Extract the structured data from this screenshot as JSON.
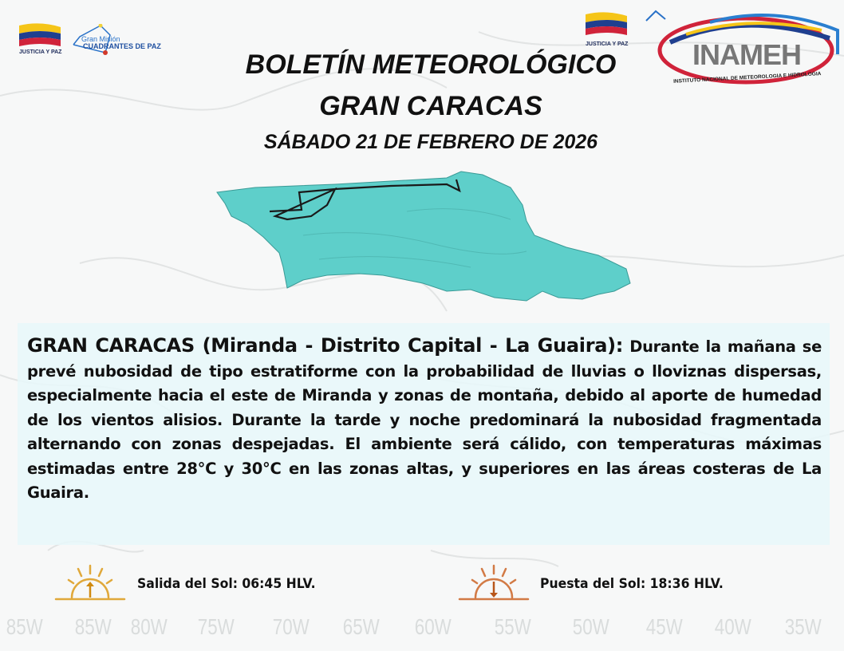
{
  "header": {
    "left_logos": {
      "flag_caption": "JUSTICIA Y PAZ",
      "mission_line1": "Gran Misión",
      "mission_line2": "CUADRANTES DE PAZ"
    },
    "right_logos": {
      "flag_caption": "JUSTICIA Y PAZ",
      "inameh_name": "INAMEH",
      "inameh_full": "INSTITUTO NACIONAL DE METEOROLOGIA E HIDROLOGIA"
    },
    "title_line1": "BOLETÍN METEOROLÓGICO",
    "title_line2": "GRAN CARACAS",
    "date": "SÁBADO  21 DE FEBRERO DE 2026"
  },
  "map": {
    "fill_color": "#5ecfca",
    "outline_color": "#1a1a1a"
  },
  "forecast": {
    "region": "GRAN CARACAS (Miranda - Distrito Capital - La Guaira):",
    "text": " Durante la mañana se prevé nubosidad de tipo estratiforme con la probabilidad de lluvias o lloviznas dispersas, especialmente hacia el este de Miranda y zonas de montaña, debido al aporte de humedad de los vientos alisios. Durante la tarde y noche predominará la nubosidad fragmentada alternando con zonas despejadas. El ambiente será cálido, con temperaturas máximas estimadas entre 28°C y 30°C en las zonas altas, y superiores en las áreas costeras de La Guaira."
  },
  "sun": {
    "sunrise": "Salida del Sol: 06:45 HLV.",
    "sunset": "Puesta del Sol: 18:36 HLV.",
    "sunrise_color": "#e0a83a",
    "sunset_color": "#d27a45"
  },
  "background_longitudes": [
    "85W",
    "80W",
    "75W",
    "70W",
    "65W",
    "60W",
    "55W",
    "50W",
    "45W",
    "40W",
    "35W"
  ]
}
